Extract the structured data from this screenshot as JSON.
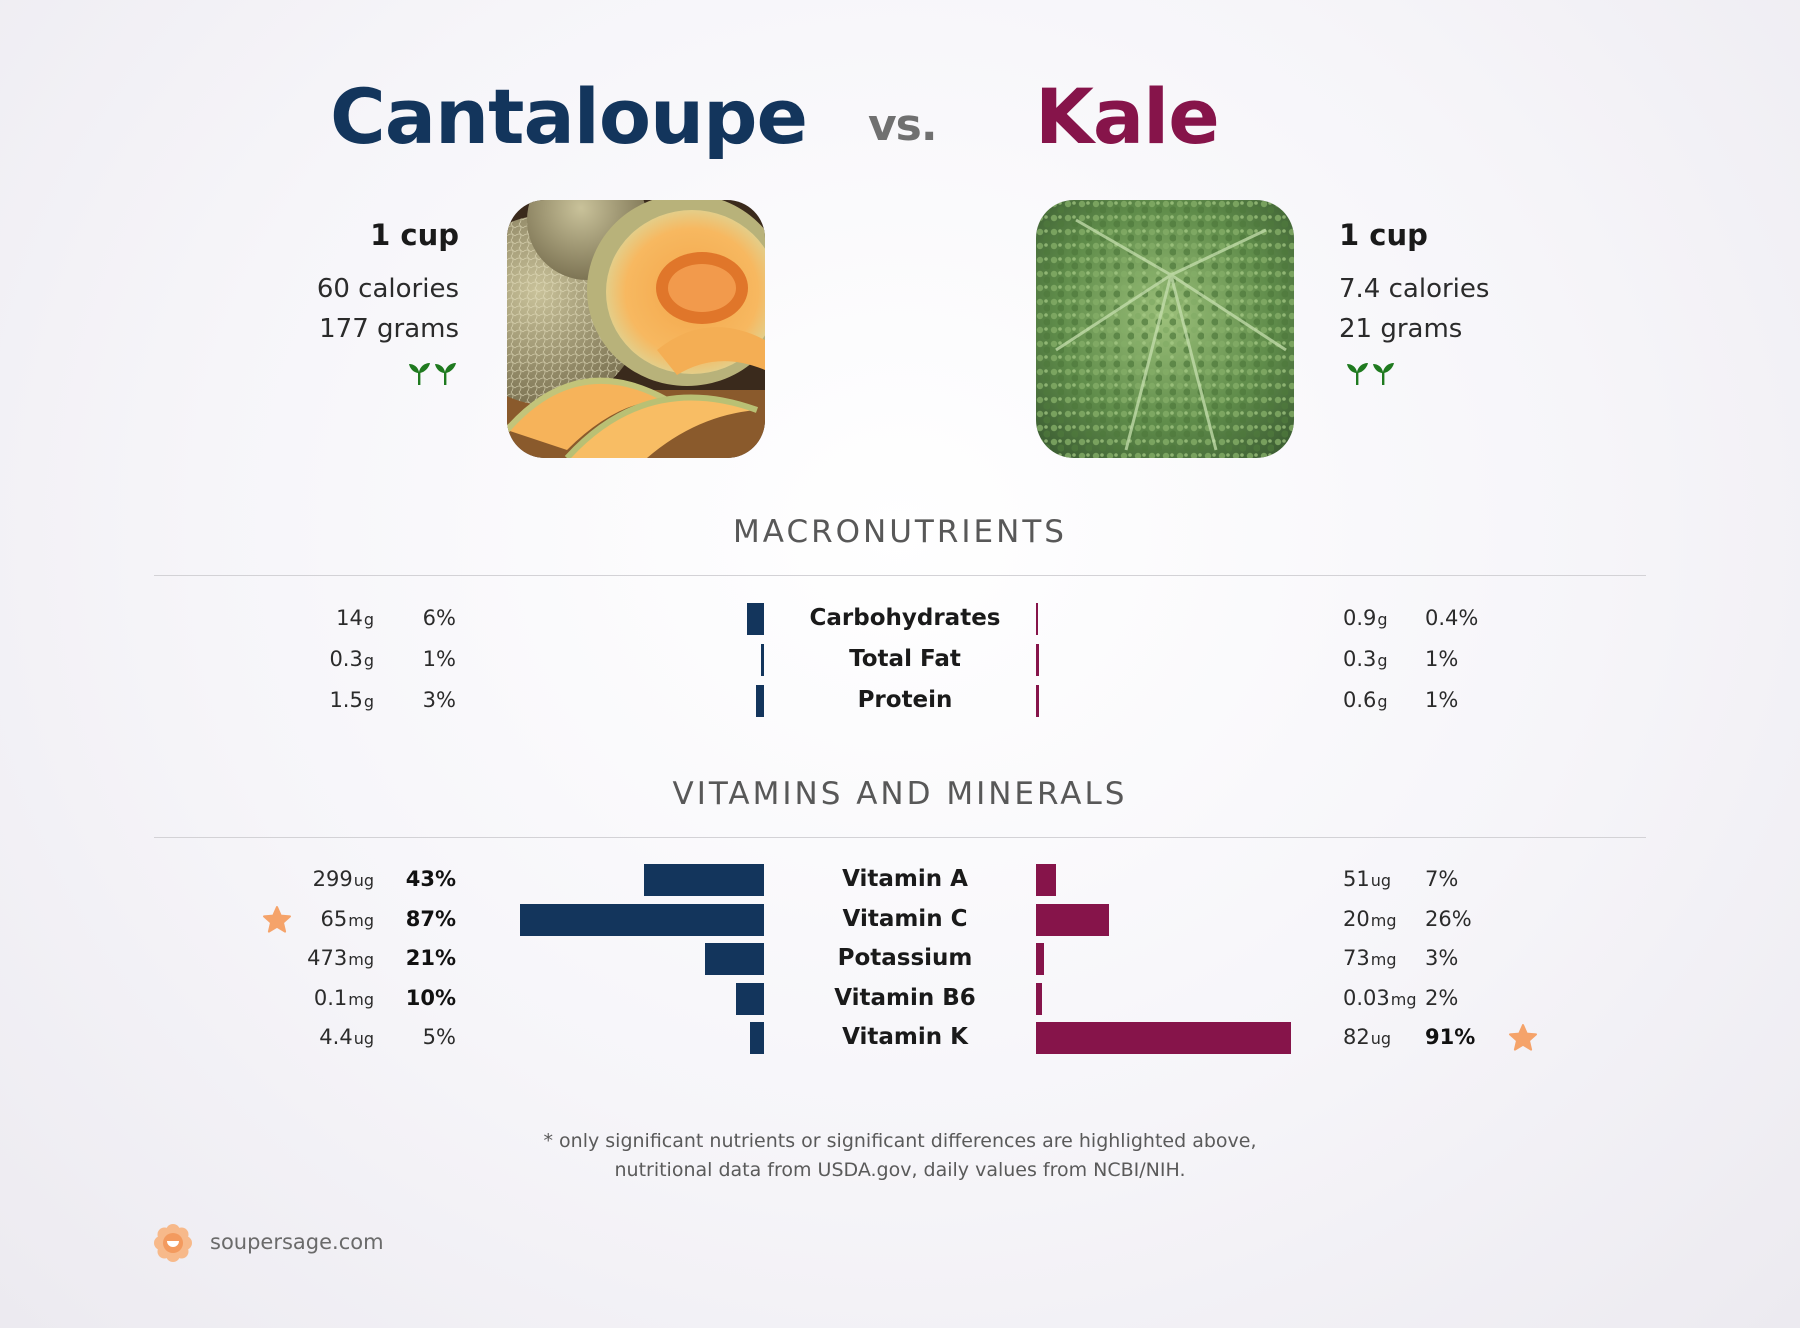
{
  "header": {
    "food_a": "Cantaloupe",
    "vs": "vs.",
    "food_b": "Kale"
  },
  "food_a": {
    "serving": "1 cup",
    "calories": "60 calories",
    "grams": "177 grams",
    "image_icon": "cantaloupe-photo",
    "badge_icon": "sprout-icon"
  },
  "food_b": {
    "serving": "1 cup",
    "calories": "7.4 calories",
    "grams": "21 grams",
    "image_icon": "kale-photo",
    "badge_icon": "sprout-icon"
  },
  "sections": {
    "macros": "MACRONUTRIENTS",
    "vitamins": "VITAMINS AND MINERALS"
  },
  "colors": {
    "food_a": "#13355c",
    "food_b": "#86144a",
    "star": "#f5a36a",
    "sprout": "#1f7a1f"
  },
  "macros": [
    {
      "name": "Carbohydrates",
      "a_value": "14",
      "a_unit": "g",
      "a_pct": "6%",
      "b_value": "0.9",
      "b_unit": "g",
      "b_pct": "0.4%"
    },
    {
      "name": "Total Fat",
      "a_value": "0.3",
      "a_unit": "g",
      "a_pct": "1%",
      "b_value": "0.3",
      "b_unit": "g",
      "b_pct": "1%"
    },
    {
      "name": "Protein",
      "a_value": "1.5",
      "a_unit": "g",
      "a_pct": "3%",
      "b_value": "0.6",
      "b_unit": "g",
      "b_pct": "1%"
    }
  ],
  "vitamins": [
    {
      "name": "Vitamin A",
      "a_value": "299",
      "a_unit": "ug",
      "a_pct": "43%",
      "b_value": "51",
      "b_unit": "ug",
      "b_pct": "7%"
    },
    {
      "name": "Vitamin C",
      "a_value": "65",
      "a_unit": "mg",
      "a_pct": "87%",
      "b_value": "20",
      "b_unit": "mg",
      "b_pct": "26%"
    },
    {
      "name": "Potassium",
      "a_value": "473",
      "a_unit": "mg",
      "a_pct": "21%",
      "b_value": "73",
      "b_unit": "mg",
      "b_pct": "3%"
    },
    {
      "name": "Vitamin B6",
      "a_value": "0.1",
      "a_unit": "mg",
      "a_pct": "10%",
      "b_value": "0.03",
      "b_unit": "mg",
      "b_pct": "2%"
    },
    {
      "name": "Vitamin K",
      "a_value": "4.4",
      "a_unit": "ug",
      "a_pct": "5%",
      "b_value": "82",
      "b_unit": "ug",
      "b_pct": "91%"
    }
  ],
  "chart_data": {
    "type": "bar",
    "categories": [
      "Carbohydrates",
      "Total Fat",
      "Protein",
      "Vitamin A",
      "Vitamin C",
      "Potassium",
      "Vitamin B6",
      "Vitamin K"
    ],
    "series": [
      {
        "name": "Cantaloupe",
        "values": [
          6,
          1,
          3,
          43,
          87,
          21,
          10,
          5
        ]
      },
      {
        "name": "Kale",
        "values": [
          0.4,
          1,
          1,
          7,
          26,
          3,
          2,
          91
        ]
      }
    ],
    "ylim": [
      0,
      100
    ],
    "bold_percent": {
      "Cantaloupe": [
        "Vitamin A",
        "Vitamin C",
        "Potassium",
        "Vitamin B6"
      ],
      "Kale": [
        "Vitamin K"
      ]
    },
    "starred": {
      "Cantaloupe": "Vitamin C",
      "Kale": "Vitamin K"
    }
  },
  "footer": {
    "note_line1": "* only significant nutrients or significant differences are highlighted above,",
    "note_line2": "nutritional data from USDA.gov, daily values from NCBI/NIH.",
    "brand": "soupersage.com",
    "brand_icon": "soupersage-logo-icon"
  }
}
